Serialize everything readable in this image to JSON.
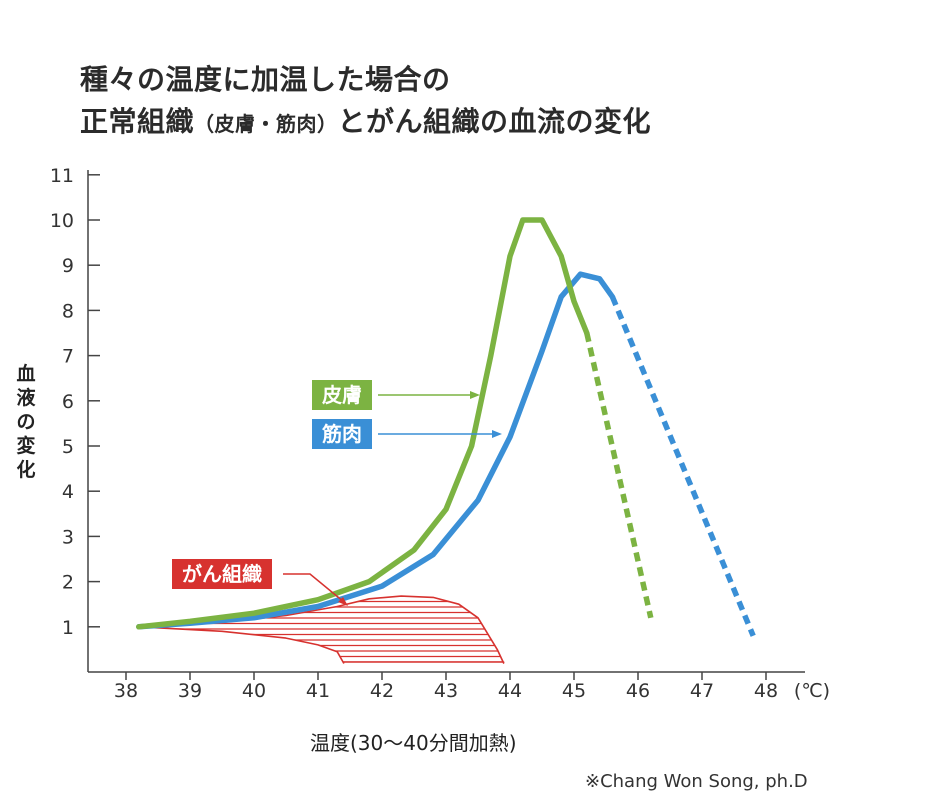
{
  "title": {
    "line1": "種々の温度に加温した場合の",
    "line2_main": "正常組織",
    "line2_paren": "（皮膚・筋肉）",
    "line2_rest": "とがん組織の血流の変化"
  },
  "credit": "※Chang Won Song, ph.D",
  "colors": {
    "skin": "#7cb342",
    "muscle": "#3a8fd6",
    "cancer": "#d7322f",
    "axis": "#444444"
  },
  "chart_data": {
    "type": "line",
    "xlabel": "温度(30〜40分間加熱)",
    "ylabel": "血液の変化",
    "x_unit": "(℃)",
    "xlim": [
      37.5,
      48.5
    ],
    "ylim": [
      0,
      11
    ],
    "x_ticks": [
      "38",
      "39",
      "40",
      "41",
      "42",
      "43",
      "44",
      "45",
      "46",
      "47",
      "48"
    ],
    "y_ticks": [
      "1",
      "2",
      "3",
      "4",
      "5",
      "6",
      "7",
      "8",
      "9",
      "10",
      "11"
    ],
    "series": [
      {
        "name": "皮膚",
        "color": "#7cb342",
        "solid": [
          [
            38.2,
            1.0
          ],
          [
            39.0,
            1.12
          ],
          [
            40.0,
            1.3
          ],
          [
            41.0,
            1.6
          ],
          [
            41.8,
            2.0
          ],
          [
            42.5,
            2.7
          ],
          [
            43.0,
            3.6
          ],
          [
            43.4,
            5.0
          ],
          [
            43.7,
            7.0
          ],
          [
            44.0,
            9.2
          ],
          [
            44.2,
            10.0
          ],
          [
            44.5,
            10.0
          ],
          [
            44.8,
            9.2
          ],
          [
            45.0,
            8.2
          ],
          [
            45.2,
            7.5
          ]
        ],
        "dashed": [
          [
            45.2,
            7.5
          ],
          [
            46.2,
            1.2
          ]
        ]
      },
      {
        "name": "筋肉",
        "color": "#3a8fd6",
        "solid": [
          [
            38.2,
            1.0
          ],
          [
            39.0,
            1.08
          ],
          [
            40.0,
            1.2
          ],
          [
            41.0,
            1.45
          ],
          [
            42.0,
            1.9
          ],
          [
            42.8,
            2.6
          ],
          [
            43.5,
            3.8
          ],
          [
            44.0,
            5.2
          ],
          [
            44.5,
            7.1
          ],
          [
            44.8,
            8.3
          ],
          [
            45.1,
            8.8
          ],
          [
            45.4,
            8.7
          ],
          [
            45.6,
            8.3
          ]
        ],
        "dashed": [
          [
            45.6,
            8.3
          ],
          [
            47.8,
            0.8
          ]
        ]
      },
      {
        "name": "がん組織",
        "color": "#d7322f",
        "upper": [
          [
            38.2,
            1.0
          ],
          [
            39.5,
            1.1
          ],
          [
            40.5,
            1.25
          ],
          [
            41.3,
            1.45
          ],
          [
            41.8,
            1.62
          ],
          [
            42.3,
            1.68
          ],
          [
            42.8,
            1.65
          ],
          [
            43.2,
            1.5
          ],
          [
            43.5,
            1.2
          ],
          [
            43.8,
            0.5
          ],
          [
            43.9,
            0.2
          ]
        ],
        "lower": [
          [
            38.2,
            1.0
          ],
          [
            39.5,
            0.9
          ],
          [
            40.5,
            0.75
          ],
          [
            41.0,
            0.6
          ],
          [
            41.3,
            0.45
          ],
          [
            41.4,
            0.2
          ]
        ]
      }
    ]
  }
}
